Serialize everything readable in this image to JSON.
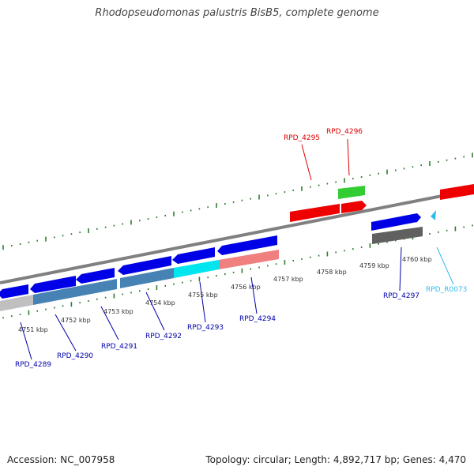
{
  "title": "Rhodopseudomonas palustris BisB5, complete genome",
  "footer": {
    "accession": "Accession: NC_007958",
    "topology": "Topology: circular; Length: 4,892,717 bp; Genes: 4,470"
  },
  "colors": {
    "background": "#ffffff",
    "backbone": "#808080",
    "ticks": "#2e7d32",
    "blue_gene": "#0000e6",
    "steel_gene": "#4682b4",
    "cyan_gene": "#00e5ee",
    "salmon_gene": "#f08080",
    "red_gene": "#ee0000",
    "green_gene": "#33cc33",
    "gray_gene": "#606060",
    "light_gray_gene": "#c0c0c0",
    "label_blue": "#0000aa",
    "label_red": "#dd0000",
    "label_cyan": "#33bbee"
  },
  "tick_labels": [
    "4751 kbp",
    "4752 kbp",
    "4753 kbp",
    "4754 kbp",
    "4755 kbp",
    "4756 kbp",
    "4757 kbp",
    "4758 kbp",
    "4759 kbp",
    "4760 kbp"
  ],
  "gene_labels": [
    {
      "text": "RPD_4289",
      "color": "label_blue"
    },
    {
      "text": "RPD_4290",
      "color": "label_blue"
    },
    {
      "text": "RPD_4291",
      "color": "label_blue"
    },
    {
      "text": "RPD_4292",
      "color": "label_blue"
    },
    {
      "text": "RPD_4293",
      "color": "label_blue"
    },
    {
      "text": "RPD_4294",
      "color": "label_blue"
    },
    {
      "text": "RPD_4295",
      "color": "label_red"
    },
    {
      "text": "RPD_4296",
      "color": "label_red"
    },
    {
      "text": "RPD_4297",
      "color": "label_blue"
    },
    {
      "text": "RPD_R0073",
      "color": "label_cyan"
    }
  ]
}
